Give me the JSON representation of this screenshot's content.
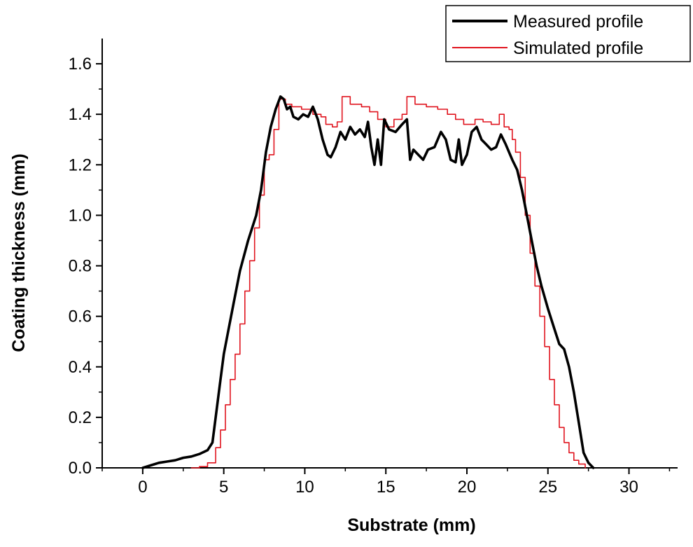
{
  "chart_data": {
    "type": "line",
    "xlabel": "Substrate (mm)",
    "ylabel": "Coating thickness (mm)",
    "xlim": [
      -2.5,
      33
    ],
    "ylim": [
      0,
      1.7
    ],
    "x_ticks": [
      0,
      5,
      10,
      15,
      20,
      25,
      30
    ],
    "y_ticks": [
      0.0,
      0.2,
      0.4,
      0.6,
      0.8,
      1.0,
      1.2,
      1.4,
      1.6
    ],
    "x_tick_labels": [
      "0",
      "5",
      "10",
      "15",
      "20",
      "25",
      "30"
    ],
    "y_tick_labels": [
      "0.0",
      "0.2",
      "0.4",
      "0.6",
      "0.8",
      "1.0",
      "1.2",
      "1.4",
      "1.6"
    ],
    "legend_position": "top-right",
    "grid": false,
    "series": [
      {
        "name": "Measured profile",
        "color": "#000000",
        "style": "line",
        "points": [
          [
            0,
            0
          ],
          [
            0.5,
            0.01
          ],
          [
            1,
            0.02
          ],
          [
            1.5,
            0.025
          ],
          [
            2,
            0.03
          ],
          [
            2.5,
            0.04
          ],
          [
            3,
            0.045
          ],
          [
            3.5,
            0.055
          ],
          [
            4,
            0.07
          ],
          [
            4.3,
            0.1
          ],
          [
            4.5,
            0.2
          ],
          [
            4.8,
            0.35
          ],
          [
            5,
            0.45
          ],
          [
            5.3,
            0.55
          ],
          [
            5.6,
            0.65
          ],
          [
            6,
            0.78
          ],
          [
            6.5,
            0.9
          ],
          [
            7,
            1.0
          ],
          [
            7.3,
            1.1
          ],
          [
            7.6,
            1.25
          ],
          [
            7.9,
            1.35
          ],
          [
            8.2,
            1.42
          ],
          [
            8.5,
            1.47
          ],
          [
            8.7,
            1.46
          ],
          [
            8.9,
            1.42
          ],
          [
            9.1,
            1.43
          ],
          [
            9.3,
            1.39
          ],
          [
            9.6,
            1.38
          ],
          [
            9.9,
            1.4
          ],
          [
            10.2,
            1.39
          ],
          [
            10.5,
            1.43
          ],
          [
            10.8,
            1.38
          ],
          [
            11.1,
            1.3
          ],
          [
            11.4,
            1.24
          ],
          [
            11.6,
            1.23
          ],
          [
            11.9,
            1.27
          ],
          [
            12.2,
            1.33
          ],
          [
            12.5,
            1.3
          ],
          [
            12.8,
            1.35
          ],
          [
            13.1,
            1.32
          ],
          [
            13.4,
            1.34
          ],
          [
            13.7,
            1.31
          ],
          [
            13.9,
            1.37
          ],
          [
            14.1,
            1.27
          ],
          [
            14.3,
            1.2
          ],
          [
            14.5,
            1.3
          ],
          [
            14.7,
            1.2
          ],
          [
            14.9,
            1.38
          ],
          [
            15.2,
            1.34
          ],
          [
            15.6,
            1.33
          ],
          [
            16,
            1.36
          ],
          [
            16.3,
            1.38
          ],
          [
            16.5,
            1.22
          ],
          [
            16.7,
            1.26
          ],
          [
            17,
            1.24
          ],
          [
            17.3,
            1.22
          ],
          [
            17.6,
            1.26
          ],
          [
            18,
            1.27
          ],
          [
            18.4,
            1.33
          ],
          [
            18.7,
            1.3
          ],
          [
            19,
            1.22
          ],
          [
            19.3,
            1.21
          ],
          [
            19.5,
            1.3
          ],
          [
            19.7,
            1.2
          ],
          [
            20,
            1.24
          ],
          [
            20.3,
            1.33
          ],
          [
            20.6,
            1.35
          ],
          [
            20.9,
            1.3
          ],
          [
            21.2,
            1.28
          ],
          [
            21.5,
            1.26
          ],
          [
            21.8,
            1.27
          ],
          [
            22.1,
            1.32
          ],
          [
            22.4,
            1.28
          ],
          [
            22.8,
            1.22
          ],
          [
            23.1,
            1.18
          ],
          [
            23.4,
            1.1
          ],
          [
            23.7,
            1.0
          ],
          [
            24,
            0.9
          ],
          [
            24.3,
            0.8
          ],
          [
            24.6,
            0.72
          ],
          [
            25,
            0.63
          ],
          [
            25.4,
            0.55
          ],
          [
            25.7,
            0.49
          ],
          [
            26,
            0.47
          ],
          [
            26.3,
            0.4
          ],
          [
            26.6,
            0.3
          ],
          [
            26.9,
            0.18
          ],
          [
            27.2,
            0.06
          ],
          [
            27.5,
            0.02
          ],
          [
            27.8,
            0.0
          ]
        ]
      },
      {
        "name": "Simulated profile",
        "color": "#e0141e",
        "style": "step",
        "points": [
          [
            3,
            0
          ],
          [
            3.5,
            0.005
          ],
          [
            4,
            0.02
          ],
          [
            4.5,
            0.08
          ],
          [
            4.8,
            0.15
          ],
          [
            5.1,
            0.25
          ],
          [
            5.4,
            0.35
          ],
          [
            5.7,
            0.45
          ],
          [
            6,
            0.57
          ],
          [
            6.3,
            0.7
          ],
          [
            6.6,
            0.82
          ],
          [
            6.9,
            0.95
          ],
          [
            7.2,
            1.08
          ],
          [
            7.5,
            1.22
          ],
          [
            7.8,
            1.24
          ],
          [
            8.1,
            1.34
          ],
          [
            8.4,
            1.46
          ],
          [
            8.8,
            1.44
          ],
          [
            9.2,
            1.43
          ],
          [
            9.8,
            1.42
          ],
          [
            10.5,
            1.4
          ],
          [
            11,
            1.39
          ],
          [
            11.3,
            1.36
          ],
          [
            11.7,
            1.35
          ],
          [
            12,
            1.37
          ],
          [
            12.3,
            1.47
          ],
          [
            12.8,
            1.44
          ],
          [
            13.5,
            1.43
          ],
          [
            14,
            1.41
          ],
          [
            14.5,
            1.38
          ],
          [
            15,
            1.35
          ],
          [
            15.5,
            1.38
          ],
          [
            16,
            1.4
          ],
          [
            16.3,
            1.47
          ],
          [
            16.8,
            1.44
          ],
          [
            17.5,
            1.43
          ],
          [
            18.2,
            1.42
          ],
          [
            18.8,
            1.4
          ],
          [
            19.3,
            1.38
          ],
          [
            19.8,
            1.36
          ],
          [
            20.5,
            1.38
          ],
          [
            21,
            1.37
          ],
          [
            21.5,
            1.36
          ],
          [
            22,
            1.4
          ],
          [
            22.3,
            1.35
          ],
          [
            22.6,
            1.34
          ],
          [
            22.8,
            1.3
          ],
          [
            23,
            1.25
          ],
          [
            23.3,
            1.15
          ],
          [
            23.6,
            1.0
          ],
          [
            23.9,
            0.85
          ],
          [
            24.2,
            0.72
          ],
          [
            24.5,
            0.6
          ],
          [
            24.8,
            0.48
          ],
          [
            25.1,
            0.35
          ],
          [
            25.4,
            0.25
          ],
          [
            25.7,
            0.16
          ],
          [
            26,
            0.1
          ],
          [
            26.3,
            0.06
          ],
          [
            26.6,
            0.03
          ],
          [
            26.9,
            0.015
          ],
          [
            27.3,
            0.0
          ]
        ]
      }
    ]
  }
}
